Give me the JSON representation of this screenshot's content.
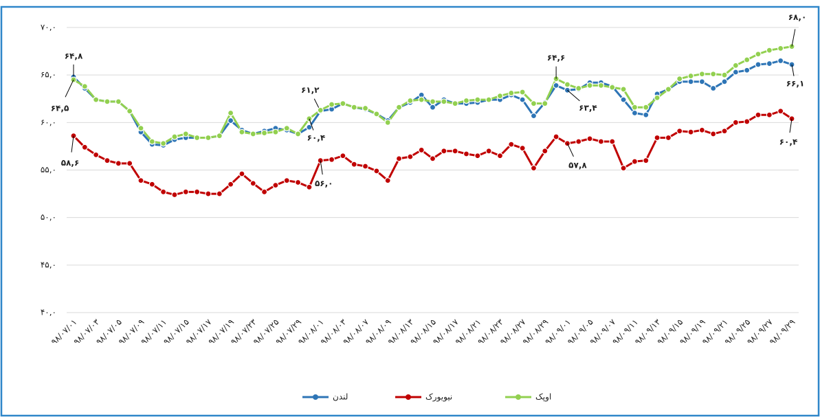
{
  "chart_data": {
    "type": "line",
    "categories": [
      "۹۸/۰۷/۰۱",
      null,
      "۹۸/۰۷/۰۳",
      null,
      "۹۸/۰۷/۰۵",
      null,
      "۹۸/۰۷/۰۹",
      null,
      "۹۸/۰۷/۱۱",
      null,
      "۹۸/۰۷/۱۵",
      null,
      "۹۸/۰۷/۱۷",
      null,
      "۹۸/۰۷/۱۹",
      null,
      "۹۸/۰۷/۲۳",
      null,
      "۹۸/۰۷/۲۵",
      null,
      "۹۸/۰۷/۲۹",
      null,
      "۹۸/۰۸/۰۱",
      null,
      "۹۸/۰۸/۰۳",
      null,
      "۹۸/۰۸/۰۷",
      null,
      "۹۸/۰۸/۰۹",
      null,
      "۹۸/۰۸/۱۳",
      null,
      "۹۸/۰۸/۱۵",
      null,
      "۹۸/۰۸/۱۷",
      null,
      "۹۸/۰۸/۲۱",
      null,
      "۹۸/۰۸/۲۳",
      null,
      "۹۸/۰۸/۲۷",
      null,
      "۹۸/۰۸/۲۹",
      null,
      "۹۸/۰۹/۰۱",
      null,
      "۹۸/۰۹/۰۵",
      null,
      "۹۸/۰۹/۰۷",
      null,
      "۹۸/۰۹/۱۱",
      null,
      "۹۸/۰۹/۱۳",
      null,
      "۹۸/۰۹/۱۵",
      null,
      "۹۸/۰۹/۱۹",
      null,
      "۹۸/۰۹/۲۱",
      null,
      "۹۸/۰۹/۲۵",
      null,
      "۹۸/۰۹/۲۷",
      null,
      "۹۸/۰۹/۲۹"
    ],
    "series": [
      {
        "name": "لندن",
        "color": "#2e75b6",
        "values": [
          64.8,
          63.6,
          62.4,
          62.2,
          62.2,
          61.2,
          59.0,
          57.7,
          57.6,
          58.2,
          58.4,
          58.4,
          58.4,
          58.6,
          60.2,
          59.2,
          58.8,
          59.1,
          59.4,
          59.2,
          58.8,
          59.5,
          61.2,
          61.4,
          62.0,
          61.6,
          61.4,
          60.9,
          60.2,
          61.6,
          62.1,
          62.9,
          61.6,
          62.4,
          62.0,
          62.0,
          62.1,
          62.4,
          62.4,
          62.9,
          62.4,
          60.7,
          62.1,
          63.9,
          63.4,
          63.5,
          64.2,
          64.2,
          63.8,
          62.4,
          61.0,
          60.8,
          63.0,
          63.5,
          64.3,
          64.3,
          64.3,
          63.6,
          64.3,
          65.3,
          65.5,
          66.1,
          66.2,
          66.5,
          66.1
        ],
        "value_labels": [
          "۶۴,۸",
          null,
          null,
          null,
          null,
          null,
          null,
          null,
          null,
          null,
          null,
          null,
          null,
          null,
          null,
          null,
          null,
          null,
          null,
          null,
          null,
          null,
          "۶۱,۲",
          null,
          null,
          null,
          null,
          null,
          null,
          null,
          null,
          null,
          null,
          null,
          null,
          null,
          null,
          null,
          null,
          null,
          null,
          null,
          null,
          null,
          "۶۳,۴",
          null,
          null,
          null,
          null,
          null,
          null,
          null,
          null,
          null,
          null,
          null,
          null,
          null,
          null,
          null,
          null,
          null,
          null,
          null,
          "۶۶,۱"
        ]
      },
      {
        "name": "نیویورک",
        "color": "#c00000",
        "values": [
          58.6,
          57.4,
          56.6,
          56.0,
          55.7,
          55.7,
          53.9,
          53.5,
          52.7,
          52.4,
          52.7,
          52.7,
          52.5,
          52.5,
          53.5,
          54.6,
          53.6,
          52.7,
          53.4,
          53.9,
          53.7,
          53.2,
          56.0,
          56.1,
          56.5,
          55.6,
          55.4,
          54.9,
          53.9,
          56.2,
          56.4,
          57.1,
          56.2,
          57.0,
          57.0,
          56.7,
          56.5,
          57.0,
          56.5,
          57.7,
          57.3,
          55.2,
          57.0,
          58.5,
          57.8,
          58.0,
          58.3,
          58.0,
          58.0,
          55.2,
          55.9,
          56.0,
          58.4,
          58.4,
          59.1,
          59.0,
          59.2,
          58.8,
          59.1,
          60.0,
          60.1,
          60.8,
          60.8,
          61.2,
          60.4
        ],
        "value_labels": [
          "۵۸,۶",
          null,
          null,
          null,
          null,
          null,
          null,
          null,
          null,
          null,
          null,
          null,
          null,
          null,
          null,
          null,
          null,
          null,
          null,
          null,
          null,
          null,
          "۵۶,۰",
          null,
          null,
          null,
          null,
          null,
          null,
          null,
          null,
          null,
          null,
          null,
          null,
          null,
          null,
          null,
          null,
          null,
          null,
          null,
          null,
          null,
          "۵۷,۸",
          null,
          null,
          null,
          null,
          null,
          null,
          null,
          null,
          null,
          null,
          null,
          null,
          null,
          null,
          null,
          null,
          null,
          null,
          null,
          "۶۰,۴"
        ]
      },
      {
        "name": "اوپک",
        "color": "#92d050",
        "values": [
          64.5,
          63.8,
          62.4,
          62.2,
          62.2,
          61.2,
          59.4,
          58.0,
          57.8,
          58.5,
          58.8,
          58.4,
          58.4,
          58.6,
          61.0,
          59.0,
          58.8,
          58.9,
          59.0,
          59.4,
          58.8,
          60.4,
          61.3,
          61.9,
          62.0,
          61.6,
          61.5,
          60.9,
          60.0,
          61.6,
          62.3,
          62.4,
          62.2,
          62.2,
          62.0,
          62.3,
          62.4,
          62.4,
          62.8,
          63.1,
          63.2,
          62.0,
          62.0,
          64.6,
          64.0,
          63.6,
          63.9,
          63.9,
          63.7,
          63.5,
          61.6,
          61.6,
          62.6,
          63.5,
          64.6,
          64.9,
          65.1,
          65.1,
          65.0,
          66.0,
          66.6,
          67.2,
          67.6,
          67.8,
          68.0
        ],
        "value_labels": [
          "۶۴,۵",
          null,
          null,
          null,
          null,
          null,
          null,
          null,
          null,
          null,
          null,
          null,
          null,
          null,
          null,
          null,
          null,
          null,
          null,
          null,
          null,
          "۶۰,۴",
          null,
          null,
          null,
          null,
          null,
          null,
          null,
          null,
          null,
          null,
          null,
          null,
          null,
          null,
          null,
          null,
          null,
          null,
          null,
          null,
          null,
          "۶۴,۶",
          null,
          null,
          null,
          null,
          null,
          null,
          null,
          null,
          null,
          null,
          null,
          null,
          null,
          null,
          null,
          null,
          null,
          null,
          null,
          null,
          "۶۸,۰"
        ]
      }
    ],
    "ylim": [
      40,
      70
    ],
    "yticks": [
      {
        "value": 40,
        "label": "۴۰,۰"
      },
      {
        "value": 45,
        "label": "۴۵,۰"
      },
      {
        "value": 50,
        "label": "۵۰,۰"
      },
      {
        "value": 55,
        "label": "۵۵,۰"
      },
      {
        "value": 60,
        "label": "۶۰,۰"
      },
      {
        "value": 65,
        "label": "۶۵,۰"
      },
      {
        "value": 70,
        "label": "۷۰,۰"
      }
    ],
    "grid": true,
    "legend": "bottom"
  }
}
